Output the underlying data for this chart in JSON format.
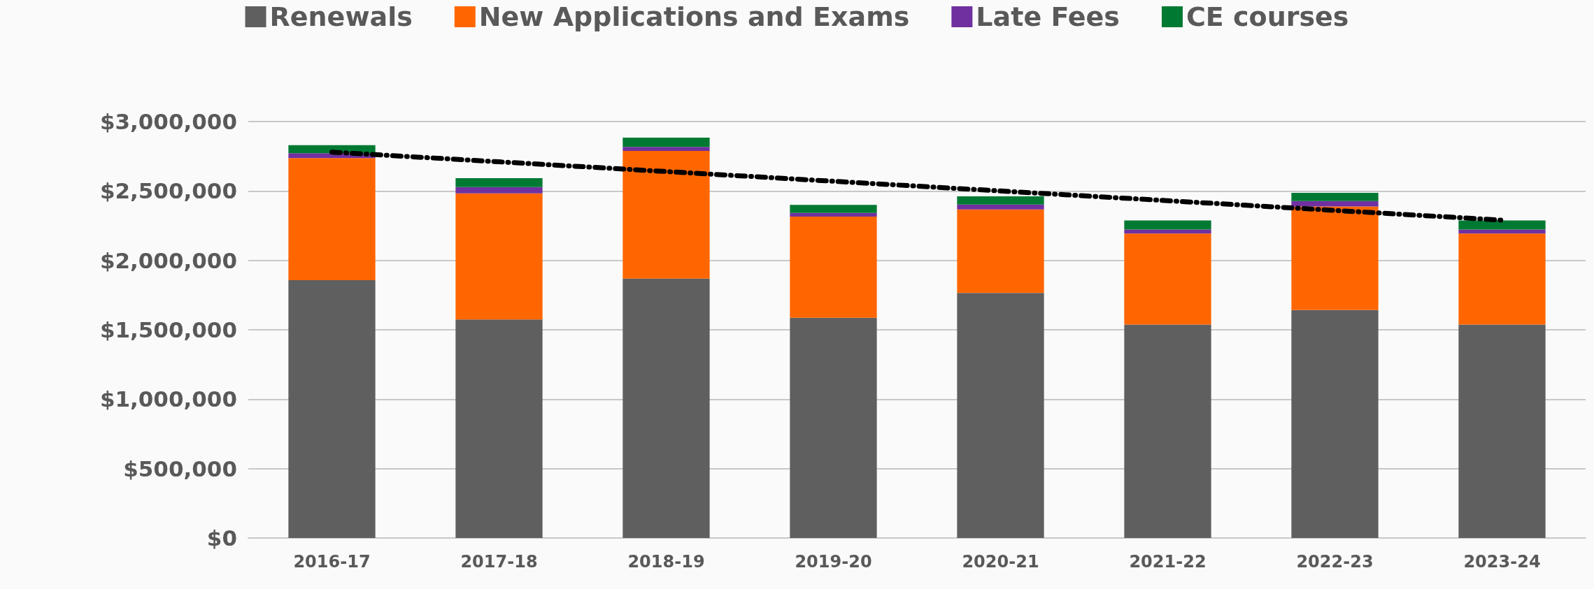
{
  "chart_data": {
    "type": "bar",
    "stacked": true,
    "legend": "top",
    "grid": "y",
    "ylim": [
      0,
      3000000
    ],
    "yticks": [
      {
        "value": 0,
        "label": "$0"
      },
      {
        "value": 500000,
        "label": "$500,000"
      },
      {
        "value": 1000000,
        "label": "$1,000,000"
      },
      {
        "value": 1500000,
        "label": "$1,500,000"
      },
      {
        "value": 2000000,
        "label": "$2,000,000"
      },
      {
        "value": 2500000,
        "label": "$2,500,000"
      },
      {
        "value": 3000000,
        "label": "$3,000,000"
      }
    ],
    "categories": [
      "2016-17",
      "2017-18",
      "2018-19",
      "2019-20",
      "2020-21",
      "2021-22",
      "2022-23",
      "2023-24"
    ],
    "series": [
      {
        "name": "Renewals",
        "color": "#5f5f5f",
        "values": [
          1857000,
          1574000,
          1869000,
          1587000,
          1766000,
          1538000,
          1642000,
          1538000
        ]
      },
      {
        "name": "New Applications and Exams",
        "color": "#ff6600",
        "values": [
          880000,
          909000,
          919000,
          729000,
          601000,
          655000,
          747000,
          655000
        ]
      },
      {
        "name": "Late Fees",
        "color": "#7030a0",
        "values": [
          35000,
          45000,
          29000,
          26000,
          35000,
          29000,
          38000,
          29000
        ]
      },
      {
        "name": "CE courses",
        "color": "#007a33",
        "values": [
          58000,
          64000,
          67000,
          58000,
          60000,
          66000,
          60000,
          66000
        ]
      },
      {
        "type": "line",
        "color": "#000000",
        "line_style": "dashed",
        "marker": "none",
        "values": [
          2780000,
          2710000,
          2640000,
          2570000,
          2500000,
          2430000,
          2360000,
          2290000
        ]
      }
    ]
  }
}
